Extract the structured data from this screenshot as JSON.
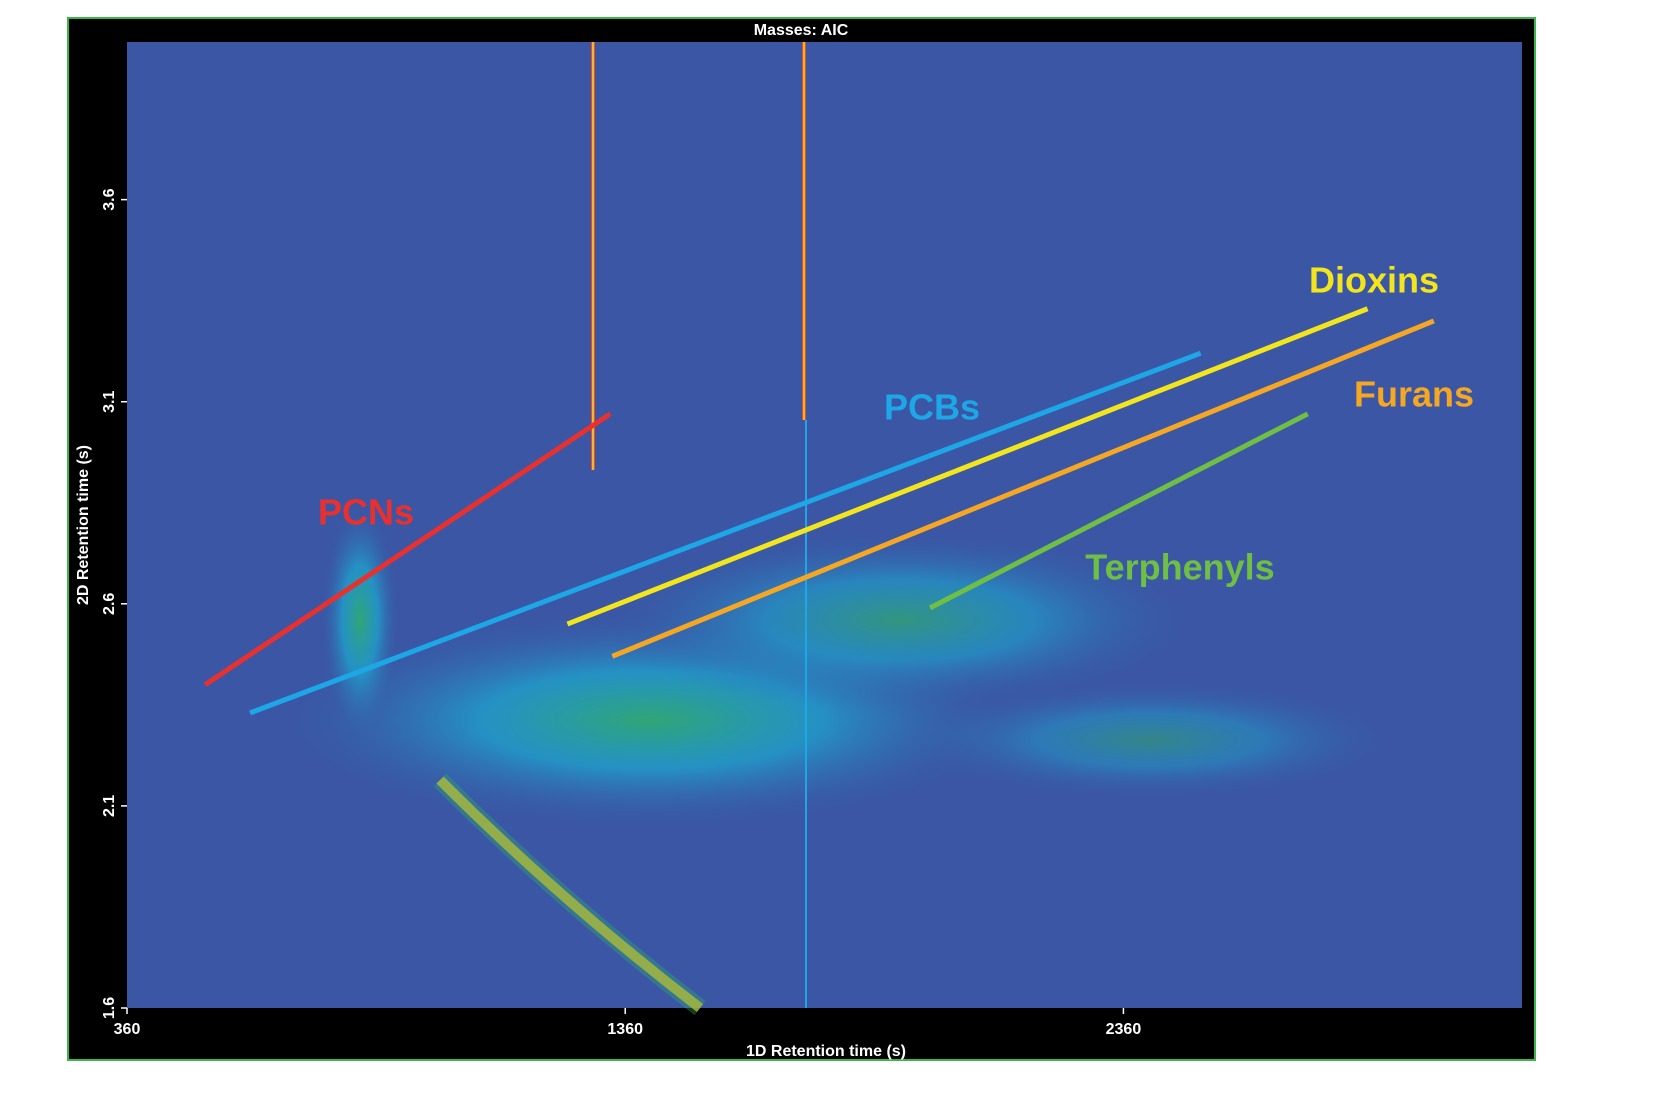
{
  "chart_data": {
    "type": "line",
    "title": "Masses:  AIC",
    "xlabel": "1D Retention time (s)",
    "ylabel": "2D Retention time (s)",
    "xlim": [
      360,
      3160
    ],
    "xticks": [
      360,
      1360,
      2360
    ],
    "ylim": [
      1.6,
      3.99
    ],
    "yticks": [
      1.6,
      2.1,
      2.6,
      3.1,
      3.6
    ],
    "series": [
      {
        "name": "PCNs",
        "color": "#e8312f",
        "x": [
          517,
          1330
        ],
        "values": [
          2.4,
          3.07
        ]
      },
      {
        "name": "PCBs",
        "color": "#1ea7e6",
        "x": [
          607,
          2515
        ],
        "values": [
          2.33,
          3.22
        ]
      },
      {
        "name": "Dioxins",
        "color": "#f2e51c",
        "x": [
          1244,
          2850
        ],
        "values": [
          2.55,
          3.33
        ]
      },
      {
        "name": "Furans",
        "color": "#f5a623",
        "x": [
          1334,
          2983
        ],
        "values": [
          2.47,
          3.3
        ]
      },
      {
        "name": "Terphenyls",
        "color": "#6fbf44",
        "x": [
          1972,
          2730
        ],
        "values": [
          2.59,
          3.07
        ]
      }
    ]
  }
}
